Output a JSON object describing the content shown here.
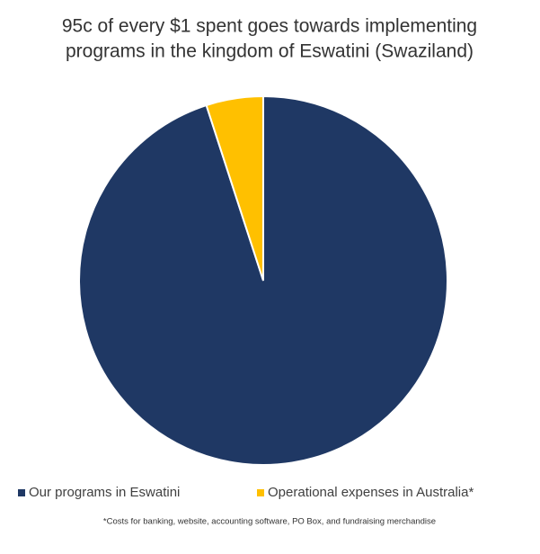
{
  "chart_data": {
    "type": "pie",
    "title": [
      "95c of every $1 spent goes towards implementing",
      "programs in the kingdom of Eswatini (Swaziland)"
    ],
    "categories": [
      "Our programs in Eswatini",
      "Operational expenses in Australia*"
    ],
    "values": [
      95,
      5
    ],
    "colors": [
      "#1f3864",
      "#ffc000"
    ],
    "legend": "bottom",
    "footnote": "*Costs for banking, website, accounting software, PO Box, and fundraising merchandise"
  }
}
